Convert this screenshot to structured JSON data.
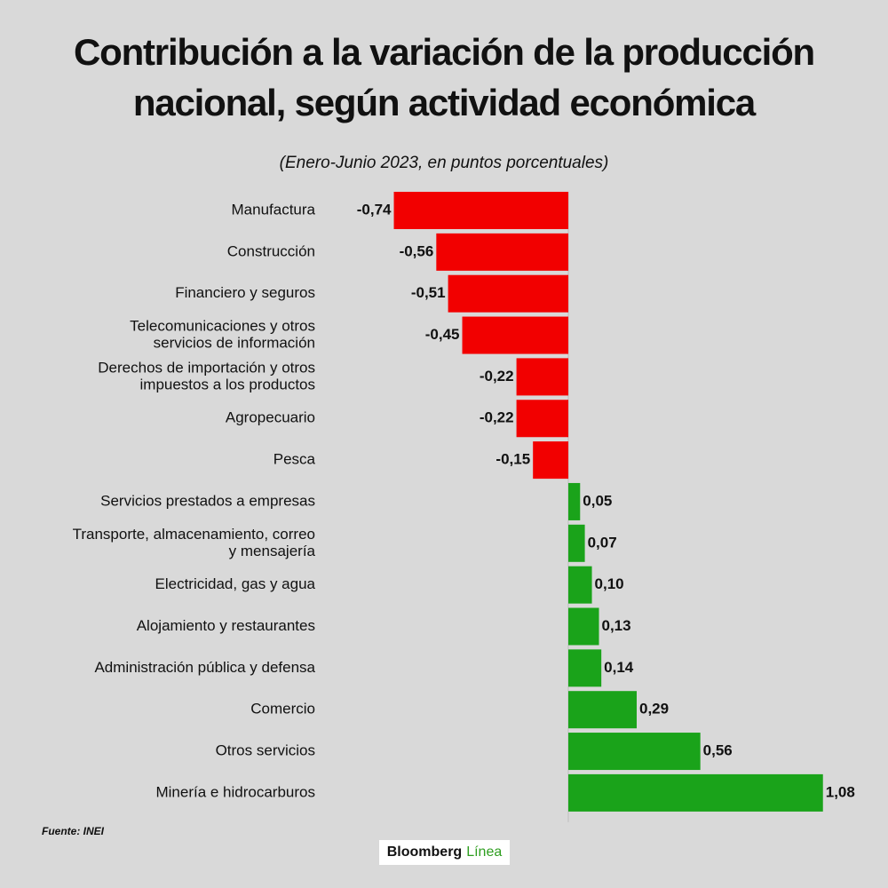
{
  "header": {
    "title_line1": "Contribución a la variación de la producción",
    "title_line2": "nacional, según  actividad económica",
    "subtitle": "(Enero-Junio 2023, en puntos porcentuales)"
  },
  "chart_data": {
    "type": "bar",
    "orientation": "horizontal",
    "title": "Contribución a la variación de la producción nacional, según actividad económica",
    "subtitle": "(Enero-Junio 2023, en puntos porcentuales)",
    "categories": [
      [
        "Manufactura"
      ],
      [
        "Construcción"
      ],
      [
        "Financiero y seguros"
      ],
      [
        "Telecomunicaciones y otros",
        "servicios de información"
      ],
      [
        "Derechos de importación y otros",
        "impuestos a los productos"
      ],
      [
        "Agropecuario"
      ],
      [
        "Pesca"
      ],
      [
        "Servicios prestados a empresas"
      ],
      [
        "Transporte, almacenamiento, correo",
        "y mensajería"
      ],
      [
        "Electricidad, gas y agua"
      ],
      [
        "Alojamiento y restaurantes"
      ],
      [
        "Administración pública y defensa"
      ],
      [
        "Comercio"
      ],
      [
        "Otros servicios"
      ],
      [
        "Minería e hidrocarburos"
      ]
    ],
    "values": [
      -0.74,
      -0.56,
      -0.51,
      -0.45,
      -0.22,
      -0.22,
      -0.15,
      0.05,
      0.07,
      0.1,
      0.13,
      0.14,
      0.29,
      0.56,
      1.08
    ],
    "value_labels": [
      "-0,74",
      "-0,56",
      "-0,51",
      "-0,45",
      "-0,22",
      "-0,22",
      "-0,15",
      "0,05",
      "0,07",
      "0,10",
      "0,13",
      "0,14",
      "0,29",
      "0,56",
      "1,08"
    ],
    "colors": {
      "negative": "#f20000",
      "positive": "#1aa31a"
    },
    "xlim": [
      -0.74,
      1.08
    ],
    "grid": false,
    "legend": "none"
  },
  "footer": {
    "source": "Fuente: INEI",
    "logo_part1": "Bloomberg",
    "logo_part2": "Línea"
  }
}
